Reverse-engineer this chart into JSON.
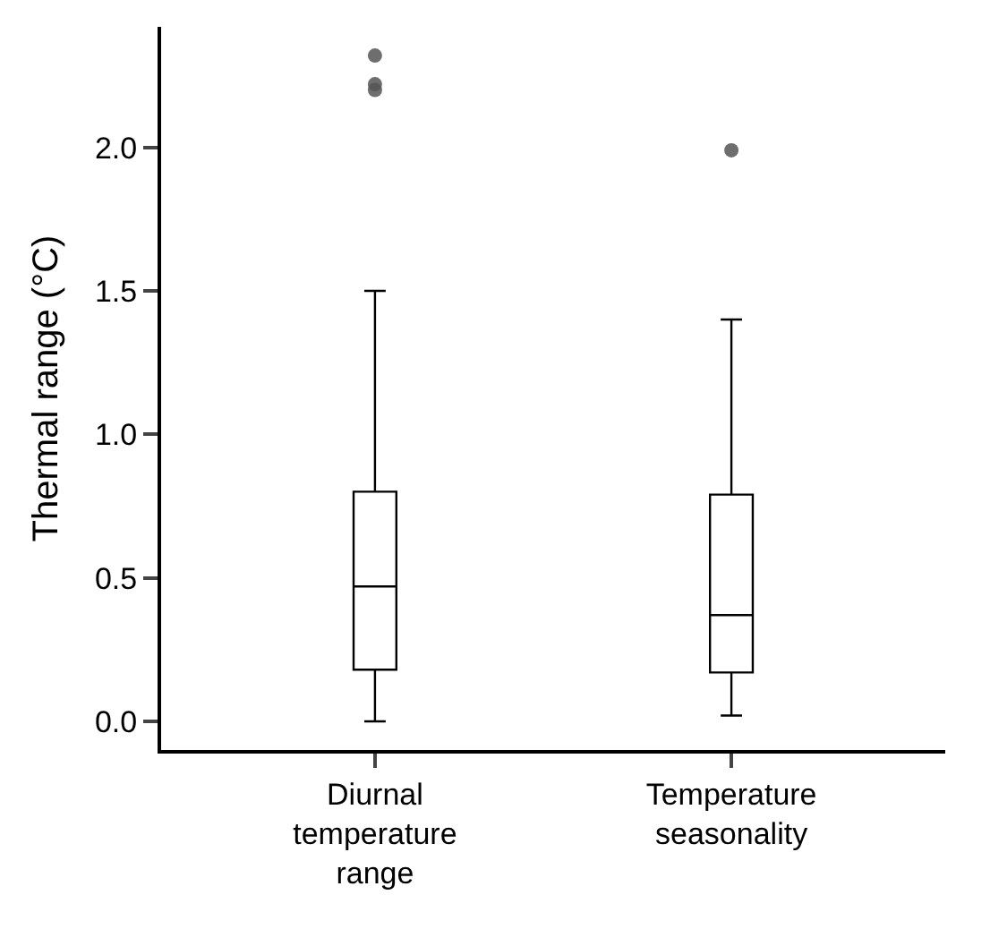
{
  "chart_data": {
    "type": "box",
    "ylabel": "Thermal range (°C)",
    "categories": [
      "Diurnal\ntemperature\nrange",
      "Temperature\nseasonality"
    ],
    "boxes": [
      {
        "low": 0.0,
        "q1": 0.18,
        "median": 0.47,
        "q3": 0.8,
        "high": 1.5,
        "outliers": [
          2.32,
          2.22,
          2.2
        ]
      },
      {
        "low": 0.02,
        "q1": 0.17,
        "median": 0.37,
        "q3": 0.79,
        "high": 1.4,
        "outliers": [
          1.99
        ]
      }
    ],
    "color": "#ffffff",
    "ylim": [
      -0.1,
      2.42
    ],
    "yticks": [
      {
        "value": 0,
        "label": "0.0"
      },
      {
        "value": 0.5,
        "label": "0.5"
      },
      {
        "value": 1,
        "label": "1.0"
      },
      {
        "value": 1.5,
        "label": "1.5"
      },
      {
        "value": 2,
        "label": "2.0"
      }
    ]
  }
}
